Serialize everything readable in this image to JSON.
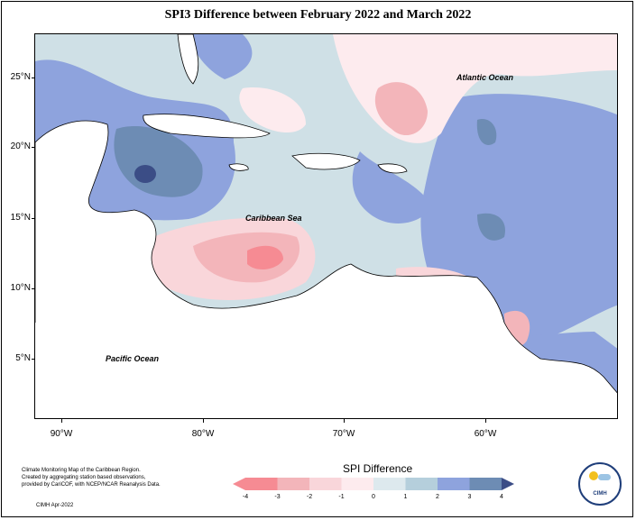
{
  "title": "SPI3 Difference between February 2022 and March 2022",
  "lat_labels": [
    "25°N",
    "20°N",
    "15°N",
    "10°N",
    "5°N"
  ],
  "lon_labels": [
    "90°W",
    "80°W",
    "70°W",
    "60°W"
  ],
  "oceans": {
    "atlantic": "Atlantic Ocean",
    "caribbean": "Caribbean Sea",
    "pacific": "Pacific Ocean"
  },
  "legend": {
    "title": "SPI Difference",
    "labels": [
      "-4",
      "-3",
      "-2",
      "-1",
      "0",
      "1",
      "2",
      "3",
      "4"
    ],
    "colors": [
      "#f68b93",
      "#f3b5ba",
      "#f9d6da",
      "#fdebee",
      "#dde9ee",
      "#b5cfdc",
      "#8ea3dd",
      "#6d8cb4",
      "#3b4d86"
    ]
  },
  "credits": {
    "line1": "Climate Monitoring Map of the Caribbean Region.",
    "line2": "Created by aggregating station based observations,",
    "line3": "provided by CariCOF, with NCEP/NCAR Reanalysis Data.",
    "date": "CIMH Apr-2022"
  },
  "logo": {
    "text": "CIMH"
  }
}
